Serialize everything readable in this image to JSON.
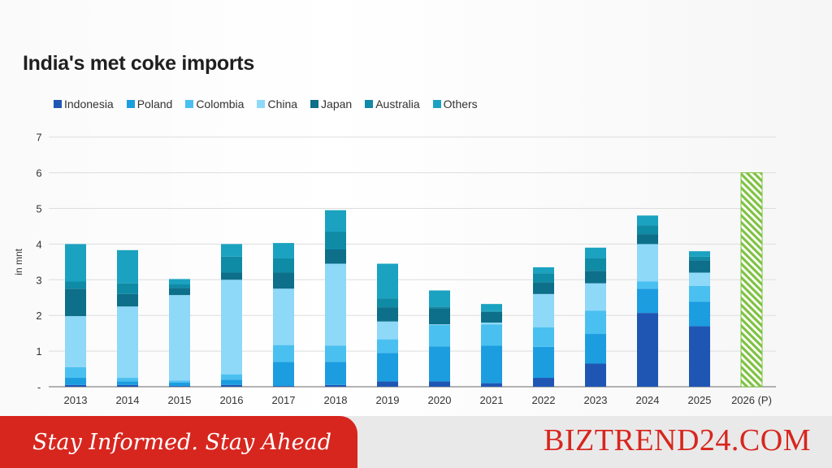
{
  "chart_data": {
    "type": "bar",
    "stacked": true,
    "title": "India's met coke imports",
    "ylabel": "in mnt",
    "xlabel": "",
    "ylim": [
      0,
      7
    ],
    "ytick_labels": [
      "-",
      "1",
      "2",
      "3",
      "4",
      "5",
      "6",
      "7"
    ],
    "grid": true,
    "legend_position": "top-left",
    "categories": [
      "2013",
      "2014",
      "2015",
      "2016",
      "2017",
      "2018",
      "2019",
      "2020",
      "2021",
      "2022",
      "2023",
      "2024",
      "2025",
      "2026 (P)"
    ],
    "series": [
      {
        "name": "Indonesia",
        "color": "#1f56b3",
        "values": [
          0.05,
          0.05,
          0.02,
          0.05,
          0.02,
          0.05,
          0.15,
          0.15,
          0.1,
          0.25,
          0.65,
          2.07,
          1.7,
          0
        ]
      },
      {
        "name": "Poland",
        "color": "#1c9de0",
        "values": [
          0.2,
          0.1,
          0.1,
          0.15,
          0.68,
          0.65,
          0.8,
          0.98,
          1.05,
          0.87,
          0.83,
          0.68,
          0.68,
          0
        ]
      },
      {
        "name": "Colombia",
        "color": "#4ac0f0",
        "values": [
          0.3,
          0.1,
          0.05,
          0.15,
          0.47,
          0.45,
          0.38,
          0.6,
          0.6,
          0.55,
          0.65,
          0.2,
          0.45,
          0
        ]
      },
      {
        "name": "China",
        "color": "#8ed8f8",
        "values": [
          1.43,
          2.0,
          2.4,
          2.65,
          1.58,
          2.3,
          0.5,
          0.02,
          0.05,
          0.93,
          0.77,
          1.05,
          0.37,
          0
        ]
      },
      {
        "name": "Japan",
        "color": "#0d6f8a",
        "values": [
          0.77,
          0.35,
          0.2,
          0.2,
          0.45,
          0.4,
          0.4,
          0.45,
          0.3,
          0.33,
          0.35,
          0.28,
          0.35,
          0
        ]
      },
      {
        "name": "Australia",
        "color": "#0f8ba6",
        "values": [
          0.2,
          0.3,
          0.1,
          0.45,
          0.4,
          0.5,
          0.25,
          0.05,
          0.02,
          0.25,
          0.35,
          0.25,
          0.1,
          0
        ]
      },
      {
        "name": "Others",
        "color": "#1ba2c0",
        "values": [
          1.05,
          0.93,
          0.15,
          0.35,
          0.43,
          0.6,
          0.97,
          0.45,
          0.2,
          0.17,
          0.3,
          0.27,
          0.15,
          0
        ]
      }
    ],
    "projected": {
      "category": "2026 (P)",
      "value": 6.0,
      "color": "#7fc243"
    }
  },
  "footer": {
    "tagline": "Stay Informed. Stay Ahead",
    "brand": "BIZTREND24.COM"
  }
}
